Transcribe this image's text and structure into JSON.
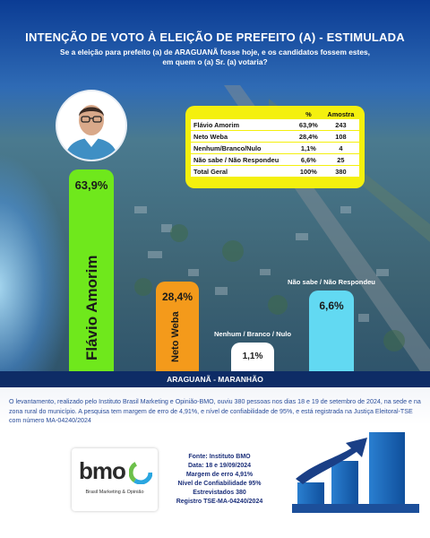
{
  "header": {
    "title": "INTENÇÃO DE VOTO À ELEIÇÃO DE PREFEITO (A) - ESTIMULADA",
    "subtitle_line1": "Se a eleição para prefeito (a) de ARAGUANÃ fosse hoje, e os candidatos fossem estes,",
    "subtitle_line2": "em quem o (a) Sr. (a) votaria?"
  },
  "table": {
    "headers": [
      "",
      "%",
      "Amostra"
    ],
    "rows": [
      {
        "label": "Flávio Amorim",
        "pct": "63,9%",
        "n": "243"
      },
      {
        "label": "Neto Weba",
        "pct": "28,4%",
        "n": "108"
      },
      {
        "label": "Nenhum/Branco/Nulo",
        "pct": "1,1%",
        "n": "4"
      },
      {
        "label": "Não sabe / Não Respondeu",
        "pct": "6,6%",
        "n": "25"
      }
    ],
    "total": {
      "label": "Total Geral",
      "pct": "100%",
      "n": "380"
    }
  },
  "chart_data": {
    "type": "bar",
    "categories": [
      "Flávio Amorim",
      "Neto Weba",
      "Nenhum / Branco / Nulo",
      "Não sabe / Não Respondeu"
    ],
    "values": [
      63.9,
      28.4,
      1.1,
      6.6
    ],
    "value_labels": [
      "63,9%",
      "28,4%",
      "1,1%",
      "6,6%"
    ],
    "colors": [
      "#6fe81c",
      "#f49a1b",
      "#ffffff",
      "#62d9f2"
    ],
    "ylim": [
      0,
      70
    ],
    "grid": false,
    "legend": "none"
  },
  "region": "ARAGUANÃ - MARANHÃO",
  "description": "O levantamento, realizado pelo Instituto Brasil Marketing e Opinião-BMO, ouviu 380 pessoas nos dias 18 e 19 de setembro de 2024, na sede e na zona rural do município. A pesquisa tem margem de erro de 4,91%, e nível de confiabilidade de 95%, e está registrada na Justiça Eleitoral-TSE com número MA-04240/2024",
  "logo": {
    "name": "bmo",
    "tagline": "Brasil Marketing & Opinião"
  },
  "info": {
    "fonte_label": "Fonte:",
    "fonte": "Instituto BMO",
    "data_label": "Data:",
    "data": "18 e 19/09/2024",
    "margem_label": "Margem de erro",
    "margem": "4,91%",
    "conf_label": "Nível de Confiabilidade",
    "conf": "95%",
    "entrev_label": "Estrevistados",
    "entrev": "380",
    "registro_label": "Registro",
    "registro": "TSE-MA-04240/2024"
  },
  "accent": {
    "table_bg": "#f4f00e",
    "navy": "#0e2c66"
  }
}
